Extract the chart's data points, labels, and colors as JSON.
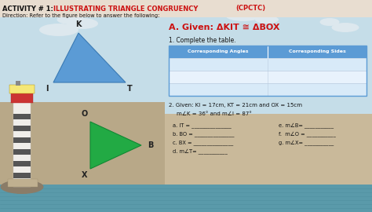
{
  "title_prefix": "ACTIVITY # 1:",
  "title_red": "ILLUSTRATING TRIANGLE CONGRUENCY ",
  "title_cpctc": "(CPCTC)",
  "direction": "Direction: Refer to the figure below to answer the following:",
  "given_label": "A. Given: ΔKIT ≅ ΔBOX",
  "complete_table": "1. Complete the table.",
  "table_headers": [
    "Corresponding Angles",
    "Corresponding Sides"
  ],
  "given2_line1": "2. Given: KI = 17cm, KT = 21cm and OX = 15cm",
  "given2_line2": "m∠K = 36° and m∠I = 87°",
  "answers_left": [
    "a. IT = _______________",
    "b. BO = _______________",
    "c. BX = _______________",
    "d. m∠T= ___________"
  ],
  "answers_right": [
    "e. m∠B= ___________",
    "f.  m∠O = ___________",
    "g. m∠X= ___________"
  ],
  "bg_color": "#c9b99a",
  "title_bg": "#e8ddd0",
  "sky_top": "#c5dde8",
  "sky_bottom": "#a8c8d8",
  "sea_color": "#5a9aaa",
  "sea_line_color": "#4a8898",
  "ground_color": "#b8a888",
  "table_header_bg": "#5b9bd5",
  "table_row_bg1": "#d8eaf8",
  "table_row_bg2": "#e8f2fc",
  "blue_tri": "#5b9bd5",
  "green_tri": "#22aa44",
  "lh_white": "#f0eeea",
  "lh_dark": "#555555",
  "lh_red": "#cc3333",
  "lh_light": "#f5e878",
  "cloud_color": "#dde8ee"
}
